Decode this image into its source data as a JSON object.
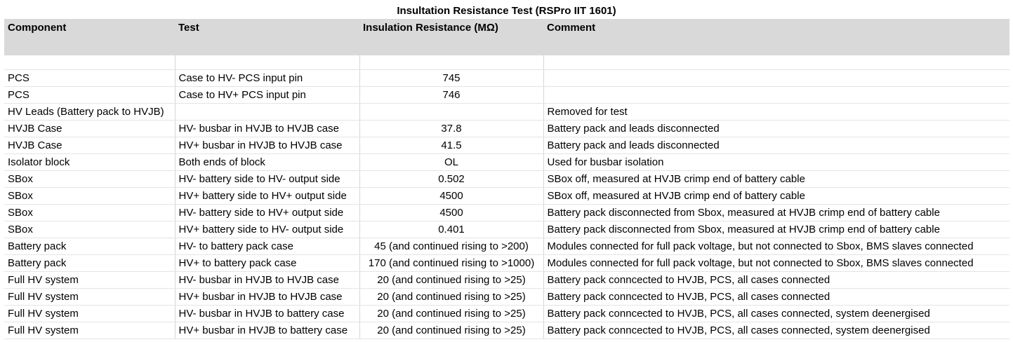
{
  "title": "Insultation Resistance Test (RSPro IIT 1601)",
  "headers": [
    "Component",
    "Test",
    "Insulation Resistance (MΩ)",
    "Comment"
  ],
  "rows": [
    [
      "PCS",
      "Case to HV- PCS input pin",
      "745",
      ""
    ],
    [
      "PCS",
      "Case to HV+ PCS input pin",
      "746",
      ""
    ],
    [
      "HV Leads (Battery pack to HVJB)",
      "",
      "",
      "Removed for test"
    ],
    [
      "HVJB Case",
      "HV- busbar in HVJB to HVJB case",
      "37.8",
      "Battery pack and leads disconnected"
    ],
    [
      "HVJB Case",
      "HV+ busbar in HVJB to HVJB case",
      "41.5",
      "Battery pack and leads disconnected"
    ],
    [
      "Isolator block",
      "Both ends of block",
      "OL",
      "Used for busbar isolation"
    ],
    [
      "SBox",
      "HV- battery side to HV- output side",
      "0.502",
      "SBox off, measured at HVJB crimp end of battery cable"
    ],
    [
      "SBox",
      "HV+ battery side to HV+ output side",
      "4500",
      "SBox off, measured at HVJB crimp end of battery cable"
    ],
    [
      "SBox",
      "HV- battery side to HV+ output side",
      "4500",
      "Battery pack disconnected from Sbox, measured at HVJB crimp end of battery cable"
    ],
    [
      "SBox",
      "HV+ battery side to HV- output side",
      "0.401",
      "Battery pack disconnected from Sbox, measured at HVJB crimp end of battery cable"
    ],
    [
      "Battery pack",
      "HV- to battery pack case",
      "45 (and continued rising to >200)",
      "Modules connected for full pack voltage, but not connected to Sbox, BMS slaves connected"
    ],
    [
      "Battery pack",
      "HV+ to battery pack case",
      "170 (and continued rising to >1000)",
      "Modules connected for full pack voltage, but not connected to Sbox, BMS slaves connected"
    ],
    [
      "Full HV system",
      "HV- busbar in HVJB to HVJB case",
      "20 (and continued rising to >25)",
      "Battery pack conncected to HVJB, PCS, all cases connected"
    ],
    [
      "Full HV system",
      "HV+ busbar in HVJB to HVJB case",
      "20 (and continued rising to >25)",
      "Battery pack conncected to HVJB, PCS, all cases connected"
    ],
    [
      "Full HV system",
      "HV- busbar in HVJB to battery case",
      "20 (and continued rising to >25)",
      "Battery pack conncected to HVJB, PCS, all cases connected, system deenergised"
    ],
    [
      "Full HV system",
      "HV+ busbar in HVJB to battery case",
      "20 (and continued rising to >25)",
      "Battery pack conncected to HVJB, PCS, all cases connected, system deenergised"
    ]
  ]
}
